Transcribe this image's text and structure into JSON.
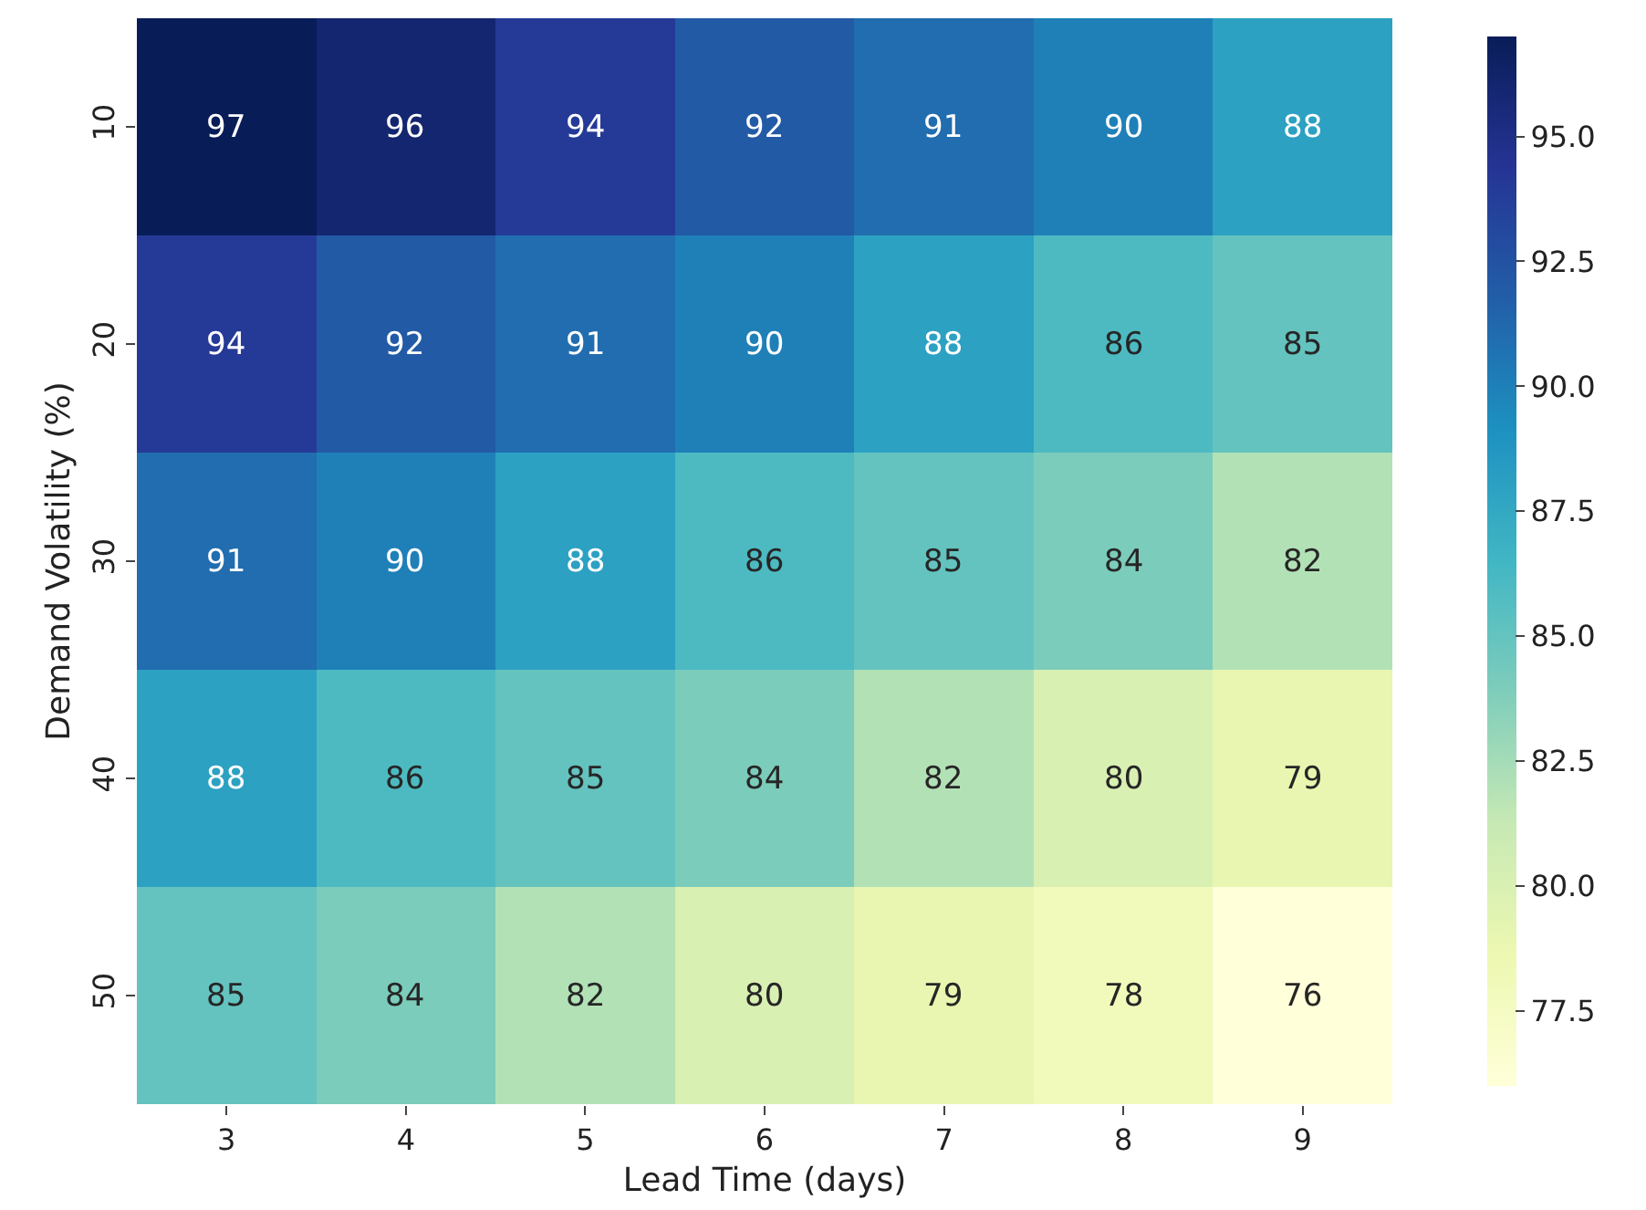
{
  "chart_data": {
    "type": "heatmap",
    "xlabel": "Lead Time (days)",
    "ylabel": "Demand Volatility (%)",
    "categories": [
      "3",
      "4",
      "5",
      "6",
      "7",
      "8",
      "9"
    ],
    "y_categories": [
      "10",
      "20",
      "30",
      "40",
      "50"
    ],
    "cells": [
      [
        97,
        96,
        94,
        92,
        91,
        90,
        88
      ],
      [
        94,
        92,
        91,
        90,
        88,
        86,
        85
      ],
      [
        91,
        90,
        88,
        86,
        85,
        84,
        82
      ],
      [
        88,
        86,
        85,
        84,
        82,
        80,
        79
      ],
      [
        85,
        84,
        82,
        80,
        79,
        78,
        76
      ]
    ],
    "data_labels": true,
    "clim": [
      76,
      97
    ],
    "cticks": [
      {
        "value": 77.5,
        "label": "77.5"
      },
      {
        "value": 80,
        "label": "80.0"
      },
      {
        "value": 82.5,
        "label": "82.5"
      },
      {
        "value": 85,
        "label": "85.0"
      },
      {
        "value": 87.5,
        "label": "87.5"
      },
      {
        "value": 90,
        "label": "90.0"
      },
      {
        "value": 92.5,
        "label": "92.5"
      },
      {
        "value": 95,
        "label": "95.0"
      }
    ]
  }
}
